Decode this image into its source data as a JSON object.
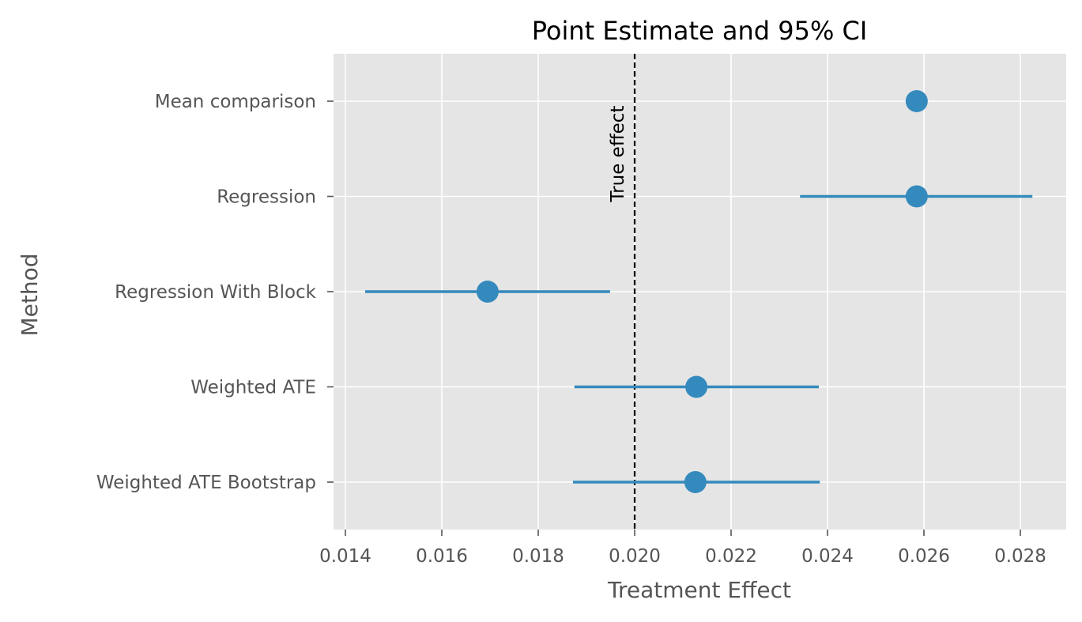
{
  "chart_data": {
    "type": "scatter",
    "title": "Point Estimate and 95% CI",
    "xlabel": "Treatment Effect",
    "ylabel": "Method",
    "xlim": [
      0.01375,
      0.029
    ],
    "xticks": [
      0.014,
      0.016,
      0.018,
      0.02,
      0.022,
      0.024,
      0.026,
      0.028
    ],
    "xtick_labels": [
      "0.014",
      "0.016",
      "0.018",
      "0.020",
      "0.022",
      "0.024",
      "0.026",
      "0.028"
    ],
    "grid": true,
    "categories": [
      "Mean comparison",
      "Regression",
      "Regression With Block",
      "Weighted ATE",
      "Weighted ATE Bootstrap"
    ],
    "estimates": [
      0.02585,
      0.02585,
      0.01695,
      0.02128,
      0.02126
    ],
    "ci_low": [
      null,
      0.02343,
      0.01441,
      0.01875,
      0.01872
    ],
    "ci_high": [
      null,
      0.02825,
      0.01949,
      0.02382,
      0.02384
    ],
    "reference_line": {
      "x": 0.02,
      "label": "True effect",
      "style": "dashed",
      "color": "#000000"
    },
    "colors": {
      "point": "#348ABD",
      "background": "#E5E5E5",
      "grid": "#FFFFFF",
      "tick_text": "#555555"
    }
  }
}
